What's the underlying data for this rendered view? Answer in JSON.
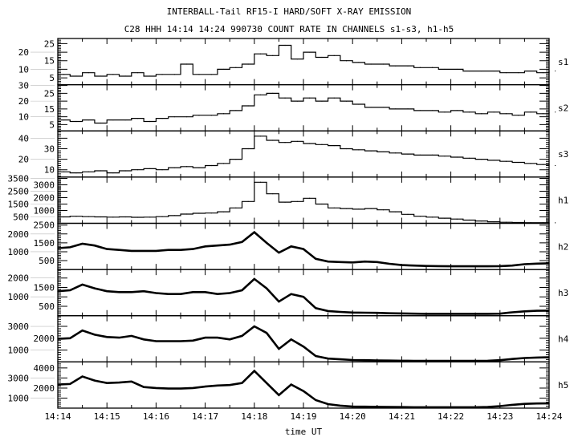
{
  "chart_data": {
    "type": "line",
    "title": "INTERBALL-Tail RF15-I HARD/SOFT X-RAY EMISSION",
    "subtitle": "C28 HHH 14:14 14:24 990730  COUNT RATE IN CHANNELS s1-s3, h1-h5",
    "xlabel": "time UT",
    "x_tick_labels": [
      "14:14",
      "14:15",
      "14:16",
      "14:17",
      "14:18",
      "14:19",
      "14:20",
      "14:21",
      "14:22",
      "14:23",
      "14:24"
    ],
    "x_range_minutes": [
      0,
      10
    ],
    "x_step_minutes": 0.25,
    "grid": false,
    "panels": [
      {
        "name": "s1",
        "ylim": [
          1,
          28
        ],
        "yticks": [
          5,
          10,
          15,
          20,
          25
        ],
        "step": true,
        "values": [
          7,
          6,
          8,
          6,
          7,
          6,
          8,
          6,
          7,
          7,
          13,
          7,
          7,
          10,
          11,
          13,
          19,
          18,
          24,
          16,
          20,
          17,
          18,
          15,
          14,
          13,
          13,
          12,
          12,
          11,
          11,
          10,
          10,
          9,
          9,
          9,
          8,
          8,
          9,
          8,
          9
        ]
      },
      {
        "name": "s2",
        "ylim": [
          1,
          30.5
        ],
        "yticks": [
          5,
          10,
          15,
          20,
          25,
          30
        ],
        "step": true,
        "values": [
          8,
          7,
          8,
          6,
          8,
          8,
          9,
          7,
          9,
          10,
          10,
          11,
          11,
          12,
          14,
          17,
          24,
          25,
          22,
          20,
          22,
          20,
          22,
          20,
          18,
          16,
          16,
          15,
          15,
          14,
          14,
          13,
          14,
          13,
          12,
          13,
          12,
          11,
          13,
          12,
          13
        ]
      },
      {
        "name": "s3",
        "ylim": [
          3,
          47
        ],
        "yticks": [
          10,
          20,
          30,
          40
        ],
        "step": true,
        "values": [
          8,
          7,
          8,
          9,
          7,
          9,
          10,
          11,
          10,
          12,
          13,
          12,
          14,
          16,
          20,
          30,
          42,
          38,
          36,
          37,
          35,
          34,
          33,
          30,
          29,
          28,
          27,
          26,
          25,
          24,
          24,
          23,
          22,
          21,
          20,
          19,
          18,
          17,
          16,
          15,
          14
        ]
      },
      {
        "name": "h1",
        "ylim": [
          0,
          3600
        ],
        "yticks": [
          500,
          1000,
          1500,
          2000,
          2500,
          3000,
          3500
        ],
        "step": true,
        "values": [
          500,
          550,
          520,
          500,
          480,
          500,
          470,
          480,
          520,
          600,
          720,
          780,
          800,
          900,
          1200,
          1700,
          3200,
          2300,
          1650,
          1700,
          1950,
          1500,
          1200,
          1150,
          1100,
          1150,
          1050,
          900,
          700,
          550,
          480,
          400,
          330,
          250,
          180,
          120,
          80,
          60,
          50,
          50,
          40
        ]
      },
      {
        "name": "h2",
        "ylim": [
          0,
          2600
        ],
        "yticks": [
          500,
          1000,
          1500,
          2000,
          2500
        ],
        "step": false,
        "values": [
          1200,
          1250,
          1450,
          1350,
          1150,
          1100,
          1050,
          1050,
          1050,
          1100,
          1100,
          1150,
          1300,
          1350,
          1400,
          1550,
          2100,
          1500,
          950,
          1300,
          1150,
          600,
          450,
          420,
          400,
          450,
          420,
          320,
          250,
          220,
          200,
          190,
          180,
          180,
          180,
          180,
          190,
          220,
          300,
          330,
          350
        ]
      },
      {
        "name": "h3",
        "ylim": [
          0,
          2450
        ],
        "yticks": [
          500,
          1000,
          1500,
          2000
        ],
        "step": false,
        "values": [
          1300,
          1350,
          1650,
          1450,
          1300,
          1250,
          1250,
          1300,
          1200,
          1150,
          1150,
          1250,
          1250,
          1150,
          1200,
          1350,
          1950,
          1450,
          750,
          1150,
          1000,
          400,
          250,
          200,
          170,
          160,
          150,
          130,
          120,
          110,
          100,
          100,
          100,
          100,
          100,
          100,
          110,
          180,
          230,
          260,
          270
        ]
      },
      {
        "name": "h4",
        "ylim": [
          0,
          3900
        ],
        "yticks": [
          1000,
          2000,
          3000
        ],
        "step": false,
        "values": [
          1950,
          2000,
          2650,
          2300,
          2100,
          2050,
          2200,
          1900,
          1750,
          1750,
          1750,
          1800,
          2050,
          2050,
          1900,
          2200,
          3000,
          2450,
          1100,
          1900,
          1300,
          500,
          280,
          220,
          160,
          150,
          130,
          110,
          100,
          90,
          90,
          90,
          90,
          90,
          90,
          100,
          150,
          250,
          330,
          370,
          390
        ]
      },
      {
        "name": "h5",
        "ylim": [
          0,
          4600
        ],
        "yticks": [
          1000,
          2000,
          3000,
          4000
        ],
        "step": false,
        "values": [
          2350,
          2400,
          3150,
          2750,
          2500,
          2550,
          2650,
          2100,
          2000,
          1950,
          1950,
          2000,
          2150,
          2250,
          2300,
          2500,
          3700,
          2500,
          1300,
          2350,
          1700,
          800,
          400,
          250,
          150,
          140,
          130,
          110,
          100,
          90,
          90,
          90,
          90,
          90,
          90,
          110,
          200,
          330,
          420,
          460,
          470
        ]
      }
    ]
  }
}
